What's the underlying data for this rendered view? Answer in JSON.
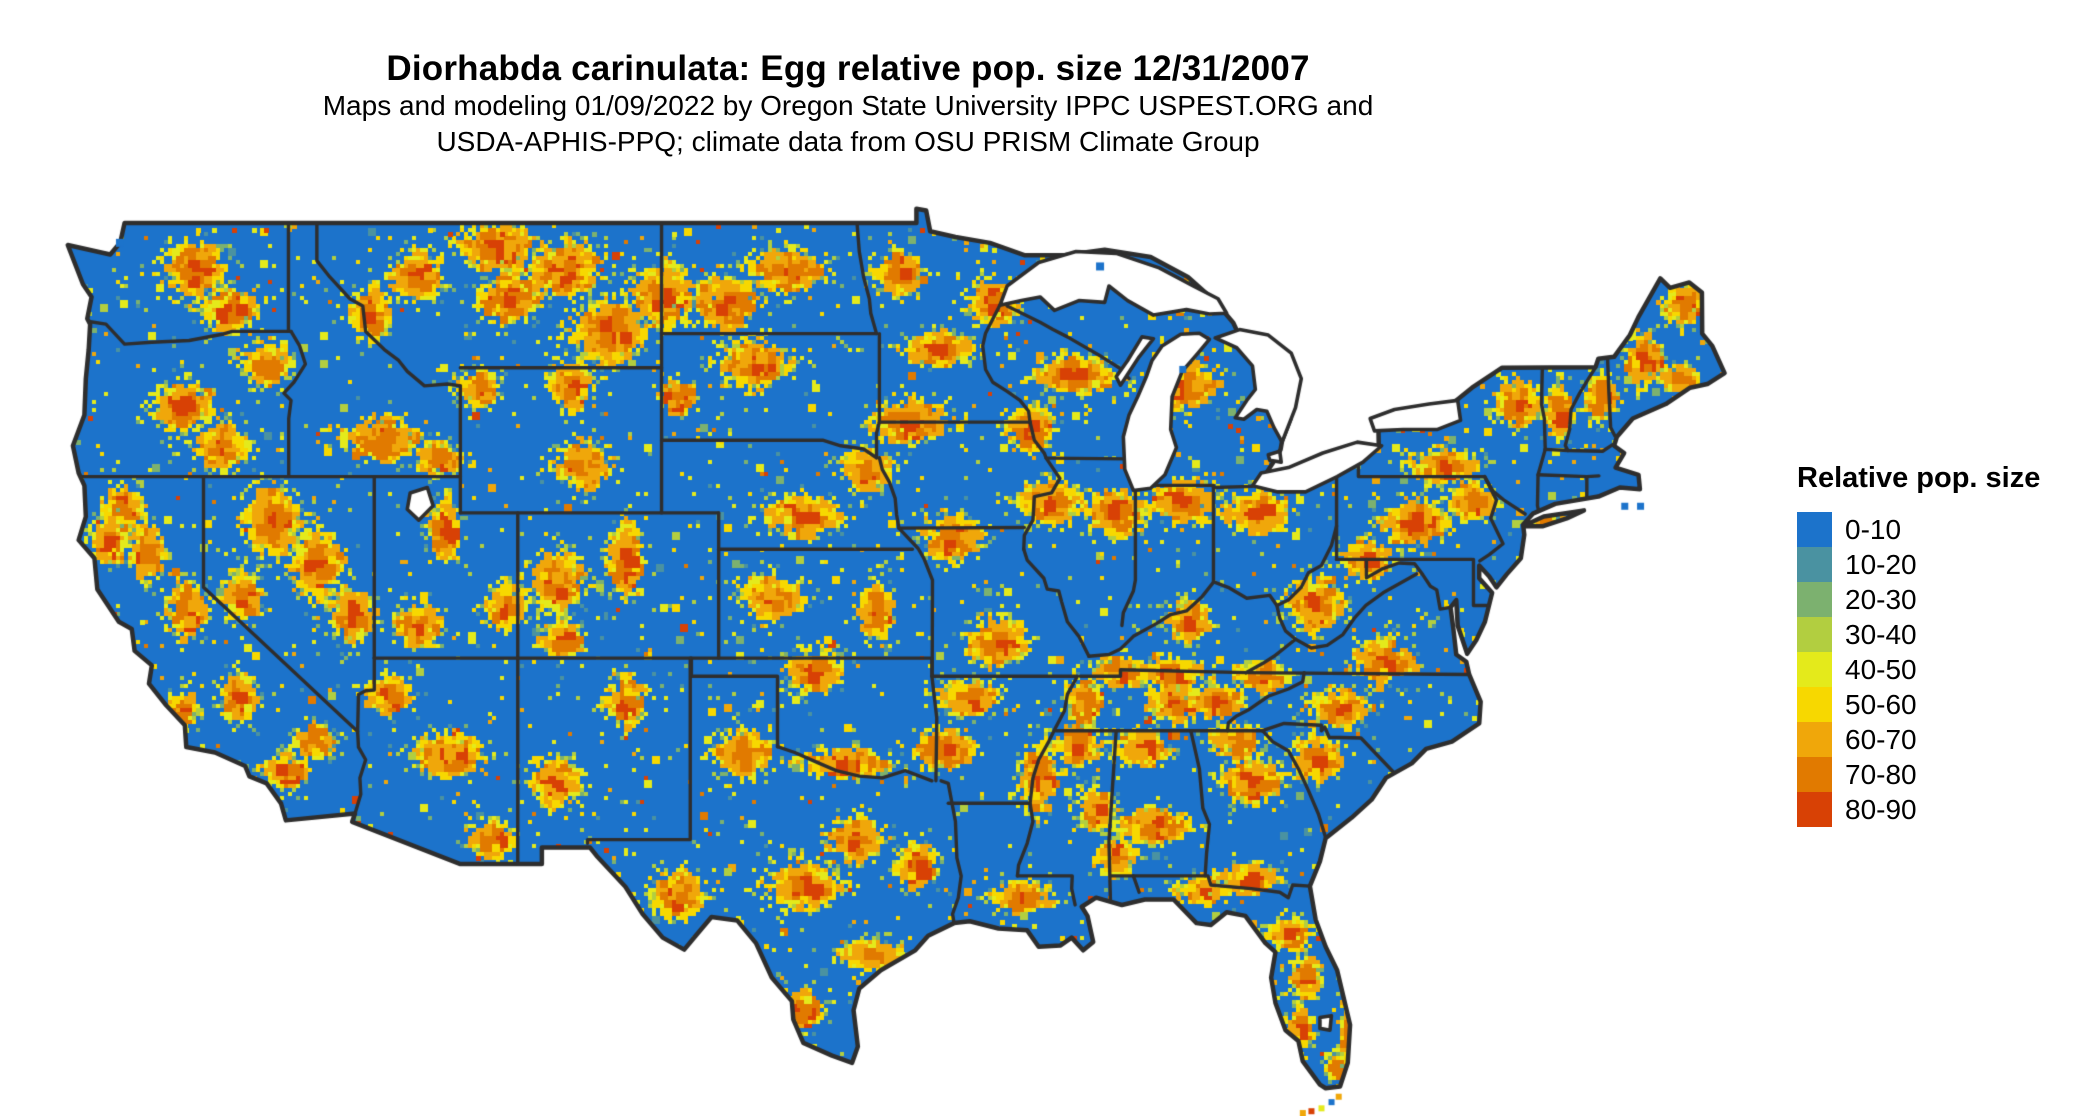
{
  "header": {
    "title": "Diorhabda carinulata: Egg relative pop. size 12/31/2007",
    "subtitle_line1": "Maps and modeling 01/09/2022 by Oregon State University IPPC USPEST.ORG and",
    "subtitle_line2": "USDA-APHIS-PPQ; climate data from OSU PRISM Climate Group"
  },
  "legend": {
    "title": "Relative pop. size",
    "items": [
      {
        "label": "0-10",
        "color": "#1c73cb"
      },
      {
        "label": "10-20",
        "color": "#4a92a1"
      },
      {
        "label": "20-30",
        "color": "#7cb16f"
      },
      {
        "label": "30-40",
        "color": "#b2ce40"
      },
      {
        "label": "40-50",
        "color": "#e4ea1b"
      },
      {
        "label": "50-60",
        "color": "#f7d800"
      },
      {
        "label": "60-70",
        "color": "#f0a70a"
      },
      {
        "label": "70-80",
        "color": "#e17a00"
      },
      {
        "label": "80-90",
        "color": "#d84105"
      }
    ]
  },
  "map": {
    "border_color": "#2e2e2e",
    "water_color": "#ffffff"
  }
}
